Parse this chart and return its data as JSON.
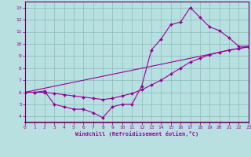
{
  "xlabel": "Windchill (Refroidissement éolien,°C)",
  "line_color": "#990099",
  "bg_color": "#b8e0e0",
  "grid_color": "#88bbbb",
  "xlim_min": 0,
  "xlim_max": 23,
  "ylim_min": 3.5,
  "ylim_max": 13.5,
  "xticks": [
    0,
    1,
    2,
    3,
    4,
    5,
    6,
    7,
    8,
    9,
    10,
    11,
    12,
    13,
    14,
    15,
    16,
    17,
    18,
    19,
    20,
    21,
    22,
    23
  ],
  "yticks": [
    4,
    5,
    6,
    7,
    8,
    9,
    10,
    11,
    12,
    13
  ],
  "line1_x": [
    0,
    1,
    2,
    3,
    4,
    5,
    6,
    7,
    8,
    9,
    10,
    11,
    12,
    13,
    14,
    15,
    16,
    17,
    18,
    19,
    20,
    21,
    22,
    23
  ],
  "line1_y": [
    6.0,
    6.0,
    6.1,
    5.0,
    4.8,
    4.6,
    4.6,
    4.3,
    3.9,
    4.8,
    5.0,
    5.0,
    6.5,
    9.5,
    10.4,
    11.6,
    11.8,
    13.0,
    12.2,
    11.4,
    11.1,
    10.5,
    9.8,
    9.8
  ],
  "line2_x": [
    0,
    1,
    2,
    3,
    4,
    5,
    6,
    7,
    8,
    9,
    10,
    11,
    12,
    13,
    14,
    15,
    16,
    17,
    18,
    19,
    20,
    21,
    22,
    23
  ],
  "line2_y": [
    6.0,
    6.0,
    6.0,
    5.9,
    5.8,
    5.7,
    5.6,
    5.5,
    5.4,
    5.5,
    5.7,
    5.9,
    6.2,
    6.6,
    7.0,
    7.5,
    8.0,
    8.5,
    8.8,
    9.1,
    9.3,
    9.5,
    9.6,
    9.75
  ],
  "line3_x": [
    0,
    23
  ],
  "line3_y": [
    6.0,
    9.8
  ]
}
